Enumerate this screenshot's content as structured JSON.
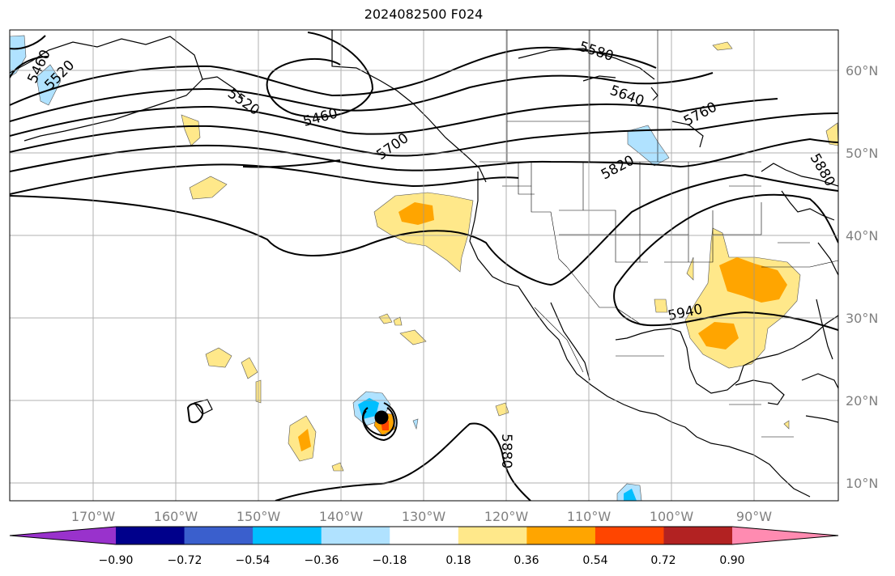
{
  "title": "2024082500 F024",
  "lon_labels": [
    "170°W",
    "160°W",
    "150°W",
    "140°W",
    "130°W",
    "120°W",
    "110°W",
    "100°W",
    "90°W"
  ],
  "lat_labels": [
    "60°N",
    "50°N",
    "40°N",
    "30°N",
    "20°N",
    "10°N"
  ],
  "contour_labels": [
    "5460",
    "5520",
    "5520",
    "5460",
    "5580",
    "5640",
    "5700",
    "5760",
    "5820",
    "5880",
    "5880",
    "5940"
  ],
  "colorbar": {
    "ticks": [
      "−0.90",
      "−0.72",
      "−0.54",
      "−0.36",
      "−0.18",
      "0.18",
      "0.36",
      "0.54",
      "0.72",
      "0.90"
    ],
    "colors": [
      "#9932cc",
      "#00008b",
      "#3a5fcd",
      "#00bfff",
      "#b0e2ff",
      "#ffffff",
      "#ffe88a",
      "#ffa500",
      "#ff4500",
      "#b22222",
      "#ff8bb1"
    ]
  }
}
